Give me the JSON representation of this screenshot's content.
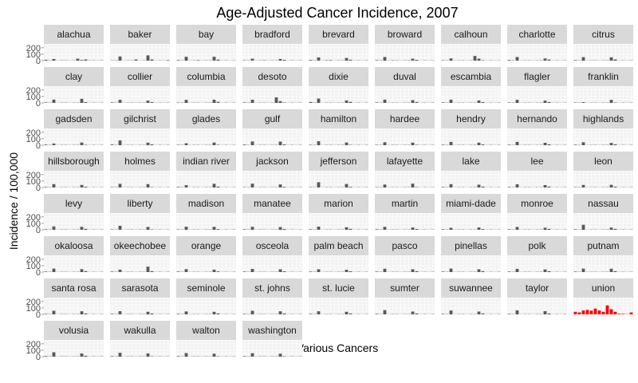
{
  "chart_data": {
    "type": "bar",
    "title": "Age-Adjusted Cancer Incidence, 2007",
    "xlabel": "Various Cancers",
    "ylabel": "Incidence / 100,000",
    "ylim": [
      0,
      260
    ],
    "y_ticks": [
      "0",
      "100",
      "200"
    ],
    "grid": true,
    "facet_layout": "wrap",
    "colors": {
      "default": "#595959",
      "highlight": "#ff0000",
      "strip": "#d9d9d9",
      "panel": "#f2f2f2",
      "grid": "#ffffff"
    },
    "highlight_county": "union",
    "num_categories": 15,
    "facets": [
      {
        "name": "alachua",
        "values": [
          14,
          4,
          25,
          2,
          4,
          4,
          2,
          4,
          30,
          10,
          18,
          3,
          4,
          2,
          4
        ]
      },
      {
        "name": "baker",
        "values": [
          4,
          4,
          65,
          2,
          4,
          4,
          18,
          2,
          4,
          82,
          18,
          2,
          4,
          2,
          8
        ]
      },
      {
        "name": "bay",
        "values": [
          8,
          4,
          60,
          2,
          4,
          8,
          2,
          4,
          4,
          60,
          16,
          2,
          4,
          2,
          4
        ]
      },
      {
        "name": "bradford",
        "values": [
          6,
          4,
          30,
          2,
          4,
          6,
          2,
          4,
          4,
          26,
          12,
          2,
          4,
          2,
          4
        ]
      },
      {
        "name": "brevard",
        "values": [
          10,
          4,
          50,
          2,
          6,
          8,
          2,
          4,
          4,
          42,
          14,
          2,
          4,
          2,
          4
        ]
      },
      {
        "name": "broward",
        "values": [
          8,
          4,
          56,
          2,
          6,
          4,
          2,
          4,
          4,
          30,
          12,
          2,
          4,
          2,
          4
        ]
      },
      {
        "name": "calhoun",
        "values": [
          6,
          4,
          34,
          2,
          4,
          4,
          2,
          4,
          72,
          30,
          6,
          2,
          4,
          2,
          4
        ]
      },
      {
        "name": "charlotte",
        "values": [
          10,
          4,
          56,
          2,
          4,
          4,
          2,
          4,
          4,
          34,
          16,
          2,
          4,
          2,
          4
        ]
      },
      {
        "name": "citrus",
        "values": [
          8,
          4,
          54,
          2,
          4,
          4,
          2,
          4,
          4,
          52,
          18,
          2,
          4,
          2,
          4
        ]
      },
      {
        "name": "clay",
        "values": [
          8,
          4,
          52,
          2,
          4,
          4,
          2,
          4,
          4,
          64,
          12,
          2,
          4,
          2,
          4
        ]
      },
      {
        "name": "collier",
        "values": [
          8,
          4,
          48,
          2,
          4,
          4,
          2,
          4,
          4,
          36,
          12,
          2,
          4,
          2,
          4
        ]
      },
      {
        "name": "columbia",
        "values": [
          6,
          4,
          48,
          2,
          4,
          4,
          2,
          4,
          4,
          50,
          16,
          2,
          4,
          2,
          4
        ]
      },
      {
        "name": "desoto",
        "values": [
          8,
          4,
          50,
          2,
          4,
          4,
          2,
          4,
          86,
          28,
          6,
          2,
          4,
          2,
          4
        ]
      },
      {
        "name": "dixie",
        "values": [
          14,
          4,
          68,
          2,
          4,
          4,
          2,
          4,
          4,
          40,
          16,
          2,
          4,
          2,
          4
        ]
      },
      {
        "name": "duval",
        "values": [
          8,
          4,
          52,
          2,
          4,
          4,
          2,
          4,
          4,
          44,
          14,
          2,
          4,
          2,
          4
        ]
      },
      {
        "name": "escambia",
        "values": [
          8,
          4,
          50,
          2,
          4,
          4,
          2,
          4,
          4,
          38,
          12,
          2,
          4,
          2,
          4
        ]
      },
      {
        "name": "flagler",
        "values": [
          6,
          4,
          48,
          2,
          4,
          4,
          2,
          4,
          4,
          36,
          14,
          2,
          4,
          2,
          4
        ]
      },
      {
        "name": "franklin",
        "values": [
          6,
          4,
          12,
          2,
          4,
          4,
          2,
          4,
          4,
          48,
          6,
          2,
          4,
          2,
          4
        ]
      },
      {
        "name": "gadsden",
        "values": [
          10,
          4,
          26,
          2,
          4,
          4,
          2,
          4,
          4,
          42,
          6,
          2,
          4,
          2,
          4
        ]
      },
      {
        "name": "gilchrist",
        "values": [
          10,
          4,
          74,
          2,
          4,
          4,
          2,
          4,
          4,
          40,
          14,
          2,
          4,
          2,
          4
        ]
      },
      {
        "name": "glades",
        "values": [
          6,
          4,
          30,
          2,
          4,
          4,
          2,
          4,
          4,
          42,
          6,
          2,
          4,
          2,
          4
        ]
      },
      {
        "name": "gulf",
        "values": [
          10,
          4,
          58,
          2,
          4,
          4,
          2,
          4,
          4,
          56,
          12,
          2,
          4,
          2,
          4
        ]
      },
      {
        "name": "hamilton",
        "values": [
          6,
          4,
          62,
          2,
          4,
          4,
          2,
          4,
          4,
          42,
          6,
          2,
          4,
          2,
          4
        ]
      },
      {
        "name": "hardee",
        "values": [
          6,
          4,
          46,
          2,
          4,
          4,
          2,
          4,
          4,
          40,
          6,
          2,
          4,
          2,
          4
        ]
      },
      {
        "name": "hendry",
        "values": [
          8,
          4,
          52,
          2,
          4,
          4,
          2,
          4,
          4,
          40,
          12,
          2,
          4,
          2,
          4
        ]
      },
      {
        "name": "hernando",
        "values": [
          8,
          4,
          52,
          2,
          4,
          4,
          2,
          4,
          4,
          38,
          14,
          2,
          4,
          2,
          4
        ]
      },
      {
        "name": "highlands",
        "values": [
          8,
          4,
          46,
          2,
          4,
          4,
          2,
          4,
          4,
          36,
          14,
          2,
          4,
          2,
          4
        ]
      },
      {
        "name": "hillsborough",
        "values": [
          8,
          4,
          52,
          2,
          4,
          4,
          2,
          4,
          4,
          40,
          12,
          2,
          4,
          2,
          4
        ]
      },
      {
        "name": "holmes",
        "values": [
          6,
          4,
          56,
          2,
          4,
          4,
          2,
          4,
          4,
          52,
          6,
          2,
          4,
          2,
          4
        ]
      },
      {
        "name": "indian river",
        "values": [
          8,
          4,
          36,
          2,
          4,
          4,
          2,
          4,
          4,
          58,
          14,
          2,
          4,
          2,
          4
        ]
      },
      {
        "name": "jackson",
        "values": [
          6,
          4,
          60,
          2,
          4,
          4,
          2,
          4,
          4,
          48,
          10,
          2,
          4,
          2,
          4
        ]
      },
      {
        "name": "jefferson",
        "values": [
          6,
          4,
          82,
          2,
          4,
          4,
          2,
          4,
          4,
          54,
          10,
          2,
          4,
          2,
          4
        ]
      },
      {
        "name": "lafayette",
        "values": [
          6,
          4,
          46,
          2,
          4,
          4,
          2,
          4,
          4,
          60,
          6,
          2,
          4,
          2,
          4
        ]
      },
      {
        "name": "lake",
        "values": [
          8,
          4,
          52,
          2,
          4,
          4,
          2,
          4,
          4,
          44,
          14,
          2,
          4,
          2,
          4
        ]
      },
      {
        "name": "lee",
        "values": [
          8,
          4,
          50,
          2,
          4,
          4,
          2,
          4,
          4,
          38,
          14,
          2,
          4,
          2,
          4
        ]
      },
      {
        "name": "leon",
        "values": [
          6,
          4,
          40,
          2,
          4,
          4,
          2,
          4,
          4,
          42,
          12,
          2,
          4,
          2,
          4
        ]
      },
      {
        "name": "levy",
        "values": [
          8,
          4,
          52,
          2,
          4,
          4,
          2,
          4,
          4,
          46,
          14,
          2,
          4,
          2,
          4
        ]
      },
      {
        "name": "liberty",
        "values": [
          6,
          4,
          62,
          2,
          4,
          4,
          2,
          4,
          4,
          44,
          6,
          2,
          4,
          2,
          4
        ]
      },
      {
        "name": "madison",
        "values": [
          6,
          4,
          48,
          2,
          4,
          4,
          2,
          4,
          4,
          46,
          10,
          2,
          4,
          2,
          4
        ]
      },
      {
        "name": "manatee",
        "values": [
          8,
          4,
          46,
          2,
          4,
          4,
          2,
          4,
          4,
          42,
          12,
          2,
          4,
          2,
          4
        ]
      },
      {
        "name": "marion",
        "values": [
          8,
          4,
          50,
          2,
          4,
          4,
          2,
          4,
          4,
          40,
          14,
          2,
          4,
          2,
          4
        ]
      },
      {
        "name": "martin",
        "values": [
          8,
          4,
          46,
          2,
          4,
          4,
          2,
          4,
          4,
          36,
          12,
          2,
          4,
          2,
          4
        ]
      },
      {
        "name": "miami-dade",
        "values": [
          8,
          4,
          30,
          2,
          4,
          4,
          2,
          4,
          4,
          36,
          10,
          2,
          4,
          2,
          4
        ]
      },
      {
        "name": "monroe",
        "values": [
          8,
          4,
          44,
          2,
          4,
          4,
          2,
          4,
          4,
          32,
          14,
          2,
          4,
          2,
          4
        ]
      },
      {
        "name": "nassau",
        "values": [
          8,
          4,
          78,
          2,
          4,
          4,
          2,
          4,
          4,
          34,
          14,
          2,
          4,
          2,
          4
        ]
      },
      {
        "name": "okaloosa",
        "values": [
          8,
          4,
          54,
          2,
          4,
          4,
          2,
          4,
          4,
          46,
          14,
          2,
          4,
          2,
          4
        ]
      },
      {
        "name": "okeechobee",
        "values": [
          8,
          4,
          38,
          2,
          4,
          4,
          2,
          4,
          4,
          84,
          14,
          2,
          4,
          2,
          4
        ]
      },
      {
        "name": "orange",
        "values": [
          8,
          4,
          46,
          2,
          4,
          4,
          2,
          4,
          4,
          38,
          10,
          2,
          4,
          2,
          4
        ]
      },
      {
        "name": "osceola",
        "values": [
          8,
          4,
          50,
          2,
          4,
          4,
          2,
          4,
          4,
          44,
          12,
          2,
          4,
          2,
          4
        ]
      },
      {
        "name": "palm beach",
        "values": [
          8,
          4,
          44,
          2,
          4,
          4,
          2,
          4,
          4,
          36,
          12,
          2,
          4,
          2,
          4
        ]
      },
      {
        "name": "pasco",
        "values": [
          8,
          4,
          52,
          2,
          4,
          4,
          2,
          4,
          4,
          44,
          14,
          2,
          4,
          2,
          4
        ]
      },
      {
        "name": "pinellas",
        "values": [
          8,
          4,
          54,
          2,
          4,
          4,
          2,
          4,
          4,
          44,
          14,
          2,
          4,
          2,
          4
        ]
      },
      {
        "name": "polk",
        "values": [
          8,
          4,
          50,
          2,
          4,
          4,
          2,
          4,
          4,
          42,
          14,
          2,
          4,
          2,
          4
        ]
      },
      {
        "name": "putnam",
        "values": [
          8,
          4,
          54,
          2,
          4,
          4,
          2,
          4,
          4,
          52,
          14,
          2,
          4,
          2,
          4
        ]
      },
      {
        "name": "santa rosa",
        "values": [
          8,
          4,
          56,
          2,
          4,
          4,
          2,
          4,
          4,
          48,
          14,
          2,
          4,
          2,
          4
        ]
      },
      {
        "name": "sarasota",
        "values": [
          8,
          4,
          50,
          2,
          4,
          4,
          2,
          4,
          4,
          40,
          14,
          2,
          4,
          2,
          4
        ]
      },
      {
        "name": "seminole",
        "values": [
          8,
          4,
          46,
          2,
          4,
          4,
          2,
          4,
          4,
          40,
          14,
          2,
          4,
          2,
          4
        ]
      },
      {
        "name": "st. johns",
        "values": [
          8,
          4,
          56,
          2,
          4,
          4,
          2,
          4,
          4,
          48,
          14,
          2,
          4,
          2,
          4
        ]
      },
      {
        "name": "st. lucie",
        "values": [
          8,
          4,
          48,
          2,
          4,
          4,
          2,
          4,
          4,
          40,
          14,
          2,
          4,
          2,
          4
        ]
      },
      {
        "name": "sumter",
        "values": [
          8,
          4,
          66,
          2,
          4,
          4,
          2,
          4,
          4,
          44,
          14,
          2,
          4,
          2,
          4
        ]
      },
      {
        "name": "suwannee",
        "values": [
          8,
          4,
          60,
          2,
          4,
          4,
          2,
          4,
          4,
          44,
          14,
          2,
          4,
          2,
          4
        ]
      },
      {
        "name": "taylor",
        "values": [
          8,
          4,
          62,
          2,
          4,
          4,
          2,
          4,
          4,
          50,
          14,
          2,
          4,
          2,
          4
        ]
      },
      {
        "name": "union",
        "values": [
          40,
          30,
          60,
          70,
          58,
          90,
          60,
          40,
          140,
          80,
          40,
          10,
          8,
          4,
          30
        ]
      },
      {
        "name": "volusia",
        "values": [
          10,
          4,
          68,
          2,
          4,
          4,
          2,
          4,
          4,
          50,
          14,
          2,
          4,
          2,
          4
        ]
      },
      {
        "name": "wakulla",
        "values": [
          8,
          4,
          60,
          2,
          4,
          4,
          2,
          4,
          4,
          50,
          6,
          2,
          4,
          2,
          4
        ]
      },
      {
        "name": "walton",
        "values": [
          8,
          4,
          56,
          2,
          4,
          4,
          2,
          4,
          4,
          46,
          6,
          2,
          4,
          2,
          4
        ]
      },
      {
        "name": "washington",
        "values": [
          8,
          4,
          54,
          2,
          4,
          4,
          2,
          4,
          4,
          46,
          6,
          2,
          4,
          2,
          4
        ]
      }
    ]
  }
}
